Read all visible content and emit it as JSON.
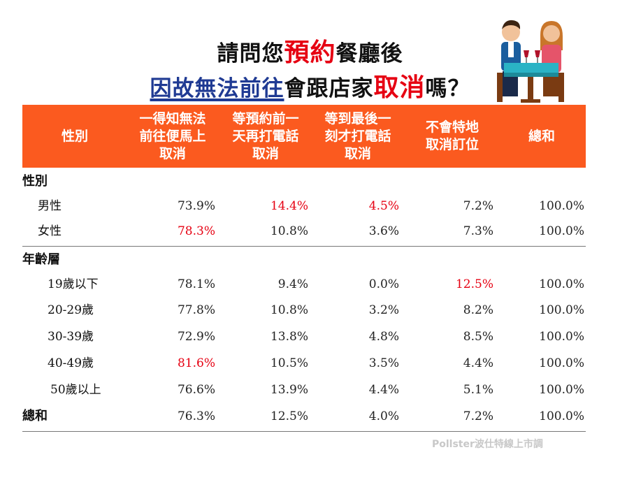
{
  "title": {
    "line1_pre": "請問您",
    "line1_highlight": "預約",
    "line1_post": "餐廳後",
    "line2_underlined": "因故無法前往",
    "line2_mid": "會跟店家",
    "line2_highlight": "取消",
    "line2_post": "嗎？"
  },
  "columns": [
    "性別",
    "一得知無法\n前往便馬上\n取消",
    "等預約前一\n天再打電話\n取消",
    "等到最後一\n刻才打電話\n取消",
    "不會特地\n取消訂位",
    "總和"
  ],
  "sections": {
    "gender": "性別",
    "age": "年齡層",
    "total": "總和"
  },
  "rows": {
    "male": {
      "label": "男性",
      "values": [
        "73.9%",
        "14.4%",
        "4.5%",
        "7.2%",
        "100.0%"
      ]
    },
    "female": {
      "label": "女性",
      "values": [
        "78.3%",
        "10.8%",
        "3.6%",
        "7.3%",
        "100.0%"
      ]
    },
    "age19": {
      "label": "19歲以下",
      "values": [
        "78.1%",
        "9.4%",
        "0.0%",
        "12.5%",
        "100.0%"
      ]
    },
    "age20": {
      "label": "20-29歲",
      "values": [
        "77.8%",
        "10.8%",
        "3.2%",
        "8.2%",
        "100.0%"
      ]
    },
    "age30": {
      "label": "30-39歲",
      "values": [
        "72.9%",
        "13.8%",
        "4.8%",
        "8.5%",
        "100.0%"
      ]
    },
    "age40": {
      "label": "40-49歲",
      "values": [
        "81.6%",
        "10.5%",
        "3.5%",
        "4.4%",
        "100.0%"
      ]
    },
    "age50": {
      "label": "50歲以上",
      "values": [
        "76.6%",
        "13.9%",
        "4.4%",
        "5.1%",
        "100.0%"
      ]
    },
    "total": {
      "values": [
        "76.3%",
        "12.5%",
        "4.0%",
        "7.2%",
        "100.0%"
      ]
    }
  },
  "watermark": "Pollster波仕特線上市調",
  "colors": {
    "header": "#fb5a1f",
    "highlight": "#e60012",
    "title_blue": "#1f3a93"
  },
  "icons": {
    "illustration": "couple-dining-icon"
  }
}
